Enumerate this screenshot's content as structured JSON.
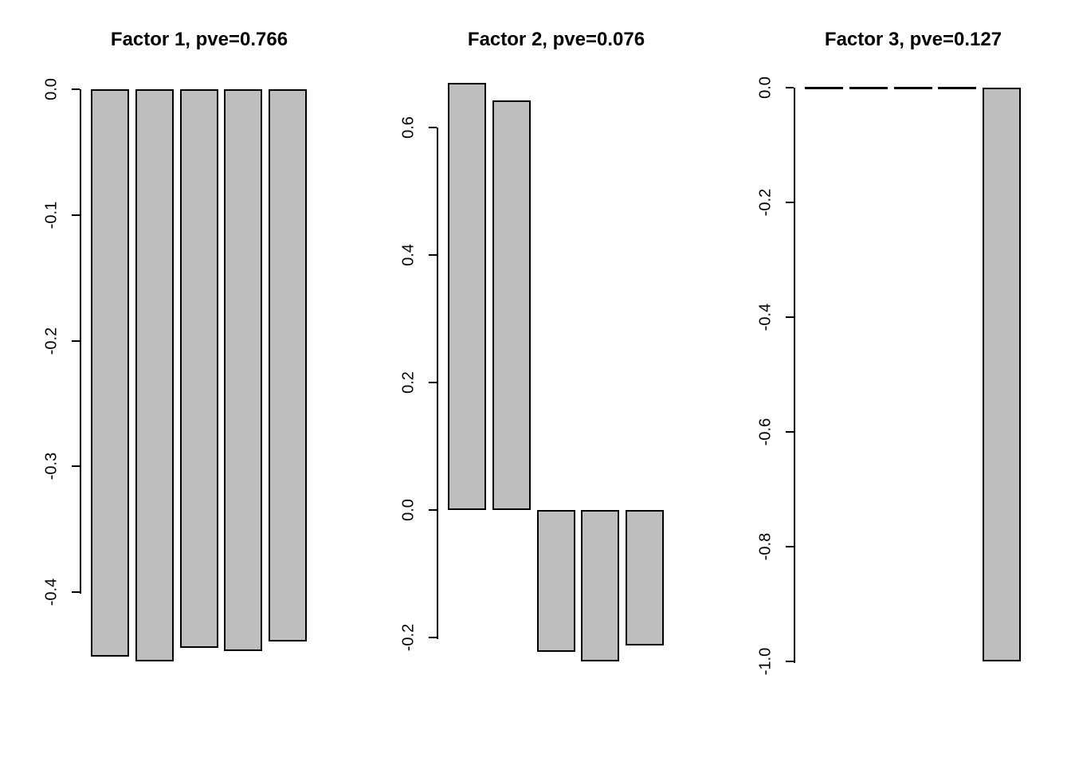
{
  "figure": {
    "background": "#ffffff",
    "bar_fill": "#bebebe",
    "bar_border": "#000000"
  },
  "chart_data": [
    {
      "type": "bar",
      "title": "Factor 1, pve=0.766",
      "pve": 0.766,
      "categories": [
        "",
        "",
        "",
        "",
        ""
      ],
      "values": [
        -0.451,
        -0.455,
        -0.444,
        -0.447,
        -0.439
      ],
      "yticks": [
        0.0,
        -0.1,
        -0.2,
        -0.3,
        -0.4
      ],
      "ytick_labels": [
        "0.0",
        "-0.1",
        "-0.2",
        "-0.3",
        "-0.4"
      ],
      "ylim": [
        -0.46,
        0.0
      ],
      "xlabel": "",
      "ylabel": "",
      "grid": false,
      "legend": null
    },
    {
      "type": "bar",
      "title": "Factor 2, pve=0.076",
      "pve": 0.076,
      "categories": [
        "",
        "",
        "",
        "",
        ""
      ],
      "values": [
        0.67,
        0.642,
        -0.222,
        -0.237,
        -0.212
      ],
      "yticks": [
        0.6,
        0.4,
        0.2,
        0.0,
        -0.2
      ],
      "ytick_labels": [
        "0.6",
        "0.4",
        "0.2",
        "0.0",
        "-0.2"
      ],
      "ylim": [
        -0.24,
        0.67
      ],
      "xlabel": "",
      "ylabel": "",
      "grid": false,
      "legend": null
    },
    {
      "type": "bar",
      "title": "Factor 3, pve=0.127",
      "pve": 0.127,
      "categories": [
        "",
        "",
        "",
        "",
        ""
      ],
      "values": [
        0.0,
        0.0,
        0.0,
        0.0,
        -1.0
      ],
      "yticks": [
        0.0,
        -0.2,
        -0.4,
        -0.6,
        -0.8,
        -1.0
      ],
      "ytick_labels": [
        "0.0",
        "-0.2",
        "-0.4",
        "-0.6",
        "-0.8",
        "-1.0"
      ],
      "ylim": [
        -1.0,
        0.0
      ],
      "xlabel": "",
      "ylabel": "",
      "grid": false,
      "legend": null
    }
  ]
}
